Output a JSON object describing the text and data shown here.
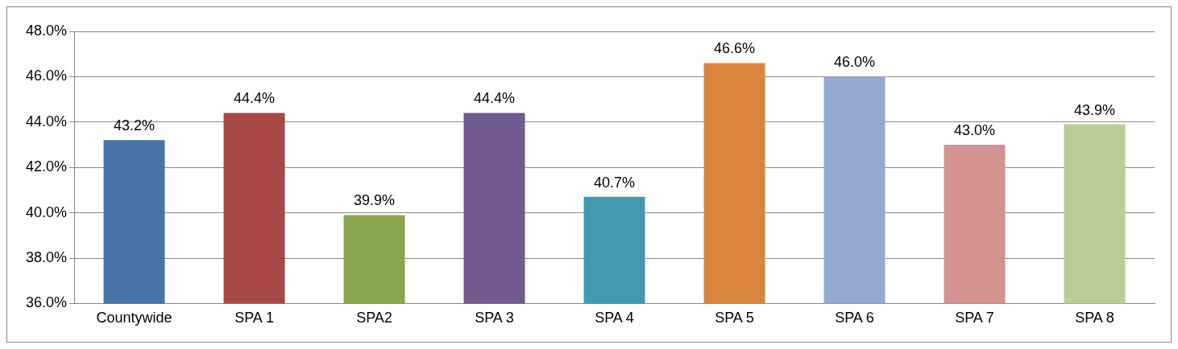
{
  "chart_data": {
    "type": "bar",
    "categories": [
      "Countywide",
      "SPA 1",
      "SPA2",
      "SPA 3",
      "SPA 4",
      "SPA 5",
      "SPA 6",
      "SPA 7",
      "SPA 8"
    ],
    "values": [
      43.2,
      44.4,
      39.9,
      44.4,
      40.7,
      46.6,
      46.0,
      43.0,
      43.9
    ],
    "colors": [
      "#4674a8",
      "#a84744",
      "#8aa64e",
      "#705a8f",
      "#4299b0",
      "#db843d",
      "#93a9cf",
      "#d49291",
      "#b9cd96"
    ],
    "value_labels": [
      "43.2%",
      "44.4%",
      "39.9%",
      "44.4%",
      "40.7%",
      "46.6%",
      "46.0%",
      "43.0%",
      "43.9%"
    ],
    "ylim": [
      36,
      48
    ],
    "yticks": [
      {
        "value": 36,
        "label": "36.0%"
      },
      {
        "value": 38,
        "label": "38.0%"
      },
      {
        "value": 40,
        "label": "40.0%"
      },
      {
        "value": 42,
        "label": "42.0%"
      },
      {
        "value": 44,
        "label": "44.0%"
      },
      {
        "value": 46,
        "label": "46.0%"
      },
      {
        "value": 48,
        "label": "48.0%"
      }
    ],
    "grid": "y"
  }
}
